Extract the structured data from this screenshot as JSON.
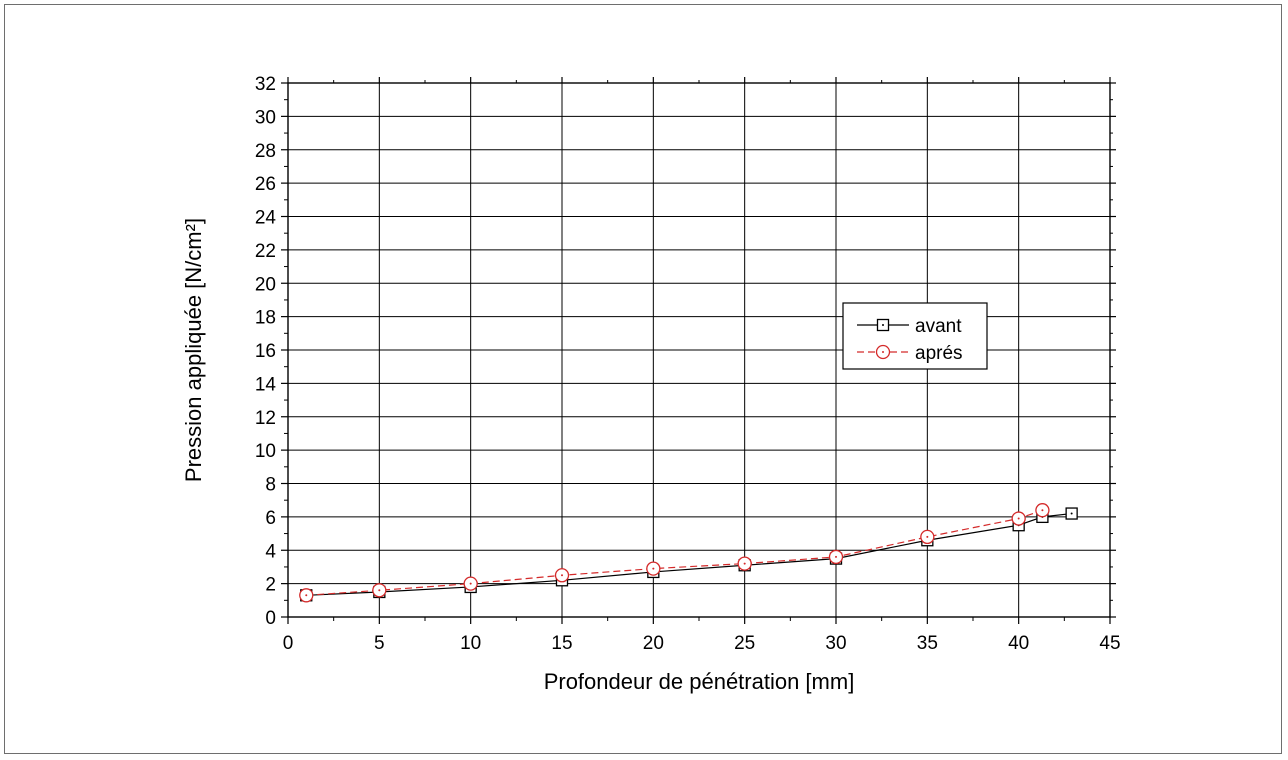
{
  "chart_data": {
    "type": "line",
    "xlabel": "Profondeur de pénétration [mm]",
    "ylabel": "Pression appliquée [N/cm²]",
    "xlim": [
      0,
      45
    ],
    "ylim": [
      0,
      32
    ],
    "xticks": [
      0,
      5,
      10,
      15,
      20,
      25,
      30,
      35,
      40,
      45
    ],
    "yticks": [
      0,
      2,
      4,
      6,
      8,
      10,
      12,
      14,
      16,
      18,
      20,
      22,
      24,
      26,
      28,
      30,
      32
    ],
    "grid": true,
    "legend_position": "right-middle",
    "series": [
      {
        "name": "avant",
        "color": "#000000",
        "marker": "square-dot",
        "line": "solid",
        "x": [
          1,
          5,
          10,
          15,
          20,
          25,
          30,
          35,
          40,
          41.3,
          42.9
        ],
        "y": [
          1.3,
          1.5,
          1.8,
          2.2,
          2.7,
          3.1,
          3.5,
          4.6,
          5.5,
          6.0,
          6.2
        ]
      },
      {
        "name": "aprés",
        "color": "#d42a2a",
        "marker": "circle-dot",
        "line": "dashed",
        "x": [
          1,
          5,
          10,
          15,
          20,
          25,
          30,
          35,
          40,
          41.3
        ],
        "y": [
          1.3,
          1.6,
          2.0,
          2.5,
          2.9,
          3.2,
          3.6,
          4.8,
          5.9,
          6.4
        ]
      }
    ]
  }
}
